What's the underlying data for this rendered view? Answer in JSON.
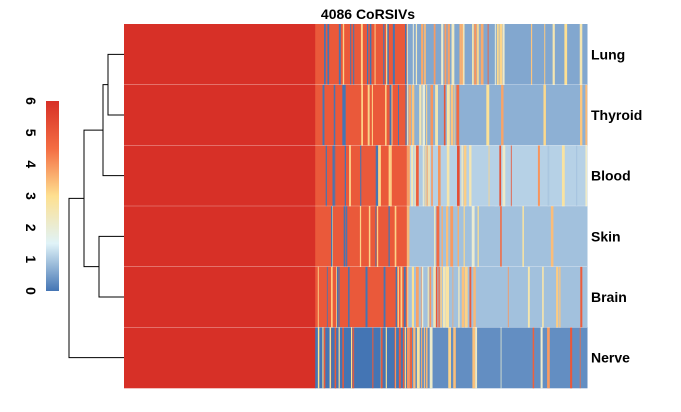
{
  "chart_data": {
    "type": "heatmap",
    "title": "4086 CoRSIVs",
    "rows": [
      "Lung",
      "Thyroid",
      "Blood",
      "Skin",
      "Brain",
      "Nerve"
    ],
    "color_scale": {
      "min": 0,
      "max": 6,
      "ticks": [
        0,
        1,
        2,
        3,
        4,
        5,
        6
      ],
      "colors": [
        "#4475b4",
        "#e0f3f8",
        "#fee090",
        "#f46d43",
        "#d73027"
      ]
    },
    "column_groups": [
      {
        "fraction": 0.413,
        "values": {
          "Lung": 6,
          "Thyroid": 6,
          "Blood": 6,
          "Skin": 6,
          "Brain": 6,
          "Nerve": 6
        }
      },
      {
        "fraction": 0.198,
        "values": {
          "Lung": 5,
          "Thyroid": 5,
          "Blood": 5,
          "Skin": 5,
          "Brain": 5,
          "Nerve": 0
        }
      },
      {
        "fraction": 0.389,
        "values": {
          "Lung": 0.6,
          "Thyroid": 0.7,
          "Blood": 1.1,
          "Skin": 0.9,
          "Brain": 0.9,
          "Nerve": 0.3
        }
      }
    ],
    "dendrogram": "rows clustered: (Nerve, ((Skin, Brain), (Blood, (Lung, Thyroid))))",
    "colorbar_placement": "left",
    "dendrogram_placement": "left"
  }
}
